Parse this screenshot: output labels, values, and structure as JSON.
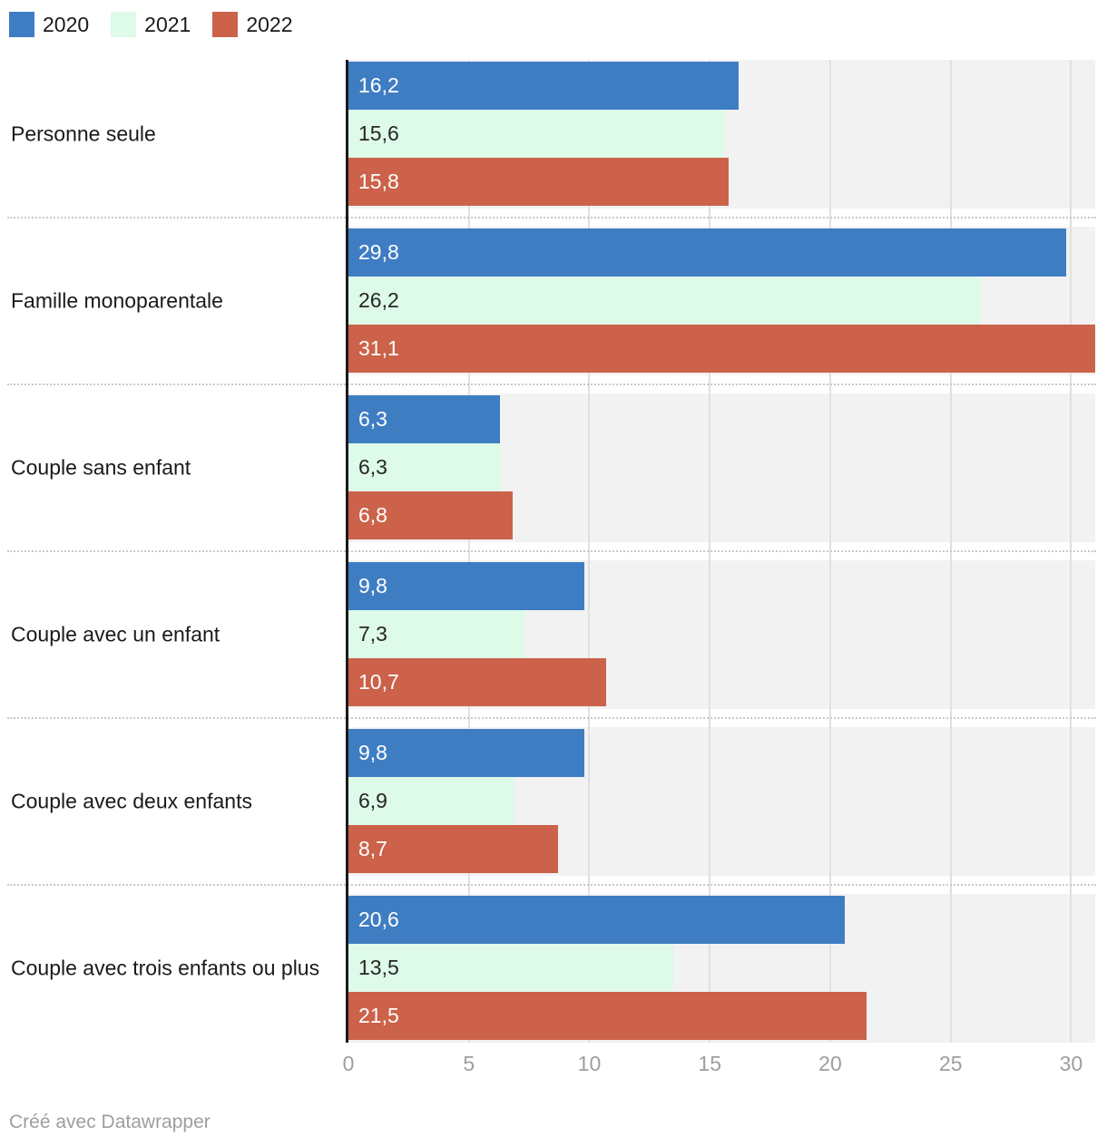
{
  "footer": {
    "credit": "Créé avec Datawrapper"
  },
  "colors": {
    "plot_band_bg": "#f2f2f2",
    "gridline": "#e0e0e0",
    "axis_line": "#1a1a1a",
    "tick_label": "#9e9e9e",
    "category_label": "#1a1a1a"
  },
  "chart_data": {
    "type": "bar",
    "orientation": "horizontal",
    "title": "",
    "xlabel": "",
    "ylabel": "",
    "grid": true,
    "legend_position": "top",
    "xlim": [
      0,
      31
    ],
    "x_ticks": [
      0,
      5,
      10,
      15,
      20,
      25,
      30
    ],
    "x_tick_labels": [
      "0",
      "5",
      "10",
      "15",
      "20",
      "25",
      "30"
    ],
    "categories": [
      "Personne seule",
      "Famille monoparentale",
      "Couple sans enfant",
      "Couple avec un enfant",
      "Couple avec deux enfants",
      "Couple avec trois enfants ou plus"
    ],
    "series": [
      {
        "name": "2020",
        "color": "#3f7dc3",
        "label_color": "#ffffff",
        "values": [
          16.2,
          29.8,
          6.3,
          9.8,
          9.8,
          20.6
        ],
        "labels": [
          "16,2",
          "29,8",
          "6,3",
          "9,8",
          "9,8",
          "20,6"
        ]
      },
      {
        "name": "2021",
        "color": "#defae9",
        "label_color": "#262626",
        "values": [
          15.6,
          26.2,
          6.3,
          7.3,
          6.9,
          13.5
        ],
        "labels": [
          "15,6",
          "26,2",
          "6,3",
          "7,3",
          "6,9",
          "13,5"
        ]
      },
      {
        "name": "2022",
        "color": "#cb6249",
        "label_color": "#ffffff",
        "values": [
          15.8,
          31.1,
          6.8,
          10.7,
          8.7,
          21.5
        ],
        "labels": [
          "15,8",
          "31,1",
          "6,8",
          "10,7",
          "8,7",
          "21,5"
        ]
      }
    ]
  }
}
